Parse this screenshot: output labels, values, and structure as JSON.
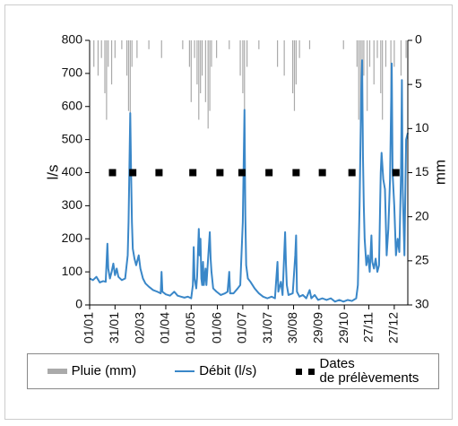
{
  "chart_data": {
    "type": "line",
    "xlim": [
      0,
      376
    ],
    "xticks": [
      {
        "value": 0,
        "label": "01/01"
      },
      {
        "value": 30,
        "label": "31/01"
      },
      {
        "value": 60,
        "label": "02/03"
      },
      {
        "value": 90,
        "label": "01/04"
      },
      {
        "value": 120,
        "label": "01/05"
      },
      {
        "value": 151,
        "label": "01/06"
      },
      {
        "value": 181,
        "label": "01/07"
      },
      {
        "value": 211,
        "label": "31/07"
      },
      {
        "value": 241,
        "label": "30/08"
      },
      {
        "value": 271,
        "label": "29/09"
      },
      {
        "value": 301,
        "label": "29/10"
      },
      {
        "value": 330,
        "label": "27/11"
      },
      {
        "value": 360,
        "label": "27/12"
      }
    ],
    "ylim": [
      0,
      800
    ],
    "yticks": [
      0,
      100,
      200,
      300,
      400,
      500,
      600,
      700,
      800
    ],
    "y_label": "l/s",
    "y2lim": [
      0,
      30
    ],
    "y2ticks": [
      0,
      5,
      10,
      15,
      20,
      25,
      30
    ],
    "y2_inverted": true,
    "y2_label": "mm",
    "series": [
      {
        "name": "Pluie (mm)",
        "type": "bar",
        "axis": "y2",
        "color": "#aaaaaa",
        "x": [
          5,
          10,
          14,
          18,
          20,
          22,
          26,
          30,
          38,
          44,
          46,
          48,
          50,
          56,
          70,
          85,
          110,
          118,
          120,
          124,
          127,
          129,
          131,
          133,
          137,
          140,
          142,
          144,
          150,
          165,
          178,
          181,
          183,
          186,
          200,
          222,
          230,
          240,
          242,
          244,
          248,
          260,
          300,
          316,
          318,
          320,
          322,
          324,
          328,
          331,
          336,
          340,
          344,
          346,
          350,
          356,
          360,
          368,
          374
        ],
        "values": [
          3,
          4,
          2,
          6,
          9,
          3,
          5,
          2,
          1,
          4,
          8,
          11,
          3,
          2,
          1,
          2,
          1,
          3,
          7,
          2,
          5,
          9,
          6,
          4,
          7,
          10,
          8,
          3,
          2,
          1,
          4,
          6,
          9,
          3,
          1,
          3,
          4,
          6,
          8,
          5,
          2,
          1,
          1,
          3,
          9,
          12,
          6,
          4,
          8,
          3,
          5,
          2,
          6,
          9,
          3,
          7,
          3,
          4,
          2
        ]
      },
      {
        "name": "Débit (l/s)",
        "type": "line",
        "color": "#3a87c8",
        "x": [
          0,
          4,
          8,
          12,
          16,
          19,
          21,
          22,
          24,
          26,
          28,
          30,
          32,
          34,
          38,
          42,
          45,
          46,
          48,
          49,
          50,
          51,
          53,
          55,
          58,
          60,
          63,
          66,
          70,
          75,
          80,
          84,
          85,
          86,
          90,
          95,
          100,
          104,
          108,
          112,
          116,
          120,
          122,
          123,
          124,
          126,
          127,
          129,
          130,
          131,
          132,
          133,
          134,
          135,
          137,
          138,
          142,
          143,
          144,
          146,
          150,
          155,
          160,
          163,
          165,
          166,
          170,
          175,
          178,
          181,
          183,
          184,
          185,
          187,
          190,
          195,
          200,
          205,
          210,
          215,
          219,
          222,
          223,
          226,
          228,
          231,
          232,
          233,
          235,
          240,
          243,
          244,
          245,
          248,
          252,
          256,
          260,
          262,
          266,
          270,
          275,
          280,
          285,
          290,
          295,
          300,
          305,
          310,
          315,
          317,
          319,
          321,
          322,
          323,
          324,
          325,
          327,
          329,
          331,
          333,
          334,
          336,
          338,
          340,
          342,
          344,
          345,
          347,
          349,
          351,
          353,
          355,
          357,
          358,
          360,
          362,
          364,
          366,
          368,
          369,
          370,
          372,
          374,
          376
        ],
        "values": [
          80,
          75,
          85,
          68,
          72,
          70,
          185,
          110,
          80,
          100,
          125,
          90,
          110,
          85,
          75,
          80,
          150,
          250,
          580,
          400,
          250,
          170,
          140,
          120,
          150,
          110,
          80,
          65,
          55,
          45,
          40,
          35,
          100,
          40,
          32,
          28,
          40,
          28,
          25,
          22,
          25,
          20,
          60,
          175,
          80,
          50,
          85,
          230,
          150,
          200,
          80,
          60,
          130,
          60,
          110,
          60,
          220,
          140,
          100,
          50,
          40,
          30,
          35,
          40,
          100,
          35,
          35,
          50,
          60,
          250,
          590,
          270,
          120,
          80,
          70,
          50,
          35,
          25,
          20,
          25,
          20,
          130,
          40,
          70,
          30,
          220,
          125,
          60,
          30,
          35,
          150,
          210,
          40,
          25,
          30,
          20,
          45,
          20,
          30,
          15,
          20,
          15,
          20,
          10,
          15,
          10,
          15,
          12,
          20,
          60,
          300,
          650,
          740,
          450,
          300,
          200,
          120,
          150,
          100,
          210,
          130,
          110,
          140,
          100,
          120,
          400,
          460,
          380,
          350,
          150,
          230,
          380,
          730,
          400,
          300,
          150,
          200,
          160,
          400,
          680,
          350,
          150,
          500,
          520
        ]
      },
      {
        "name": "Dates\nde prélèvements",
        "type": "scatter",
        "color": "#000000",
        "x": [
          27,
          51,
          82,
          122,
          154,
          180,
          212,
          244,
          275,
          310,
          362
        ],
        "values": [
          400,
          400,
          400,
          400,
          400,
          400,
          400,
          400,
          400,
          400,
          400
        ]
      }
    ]
  }
}
